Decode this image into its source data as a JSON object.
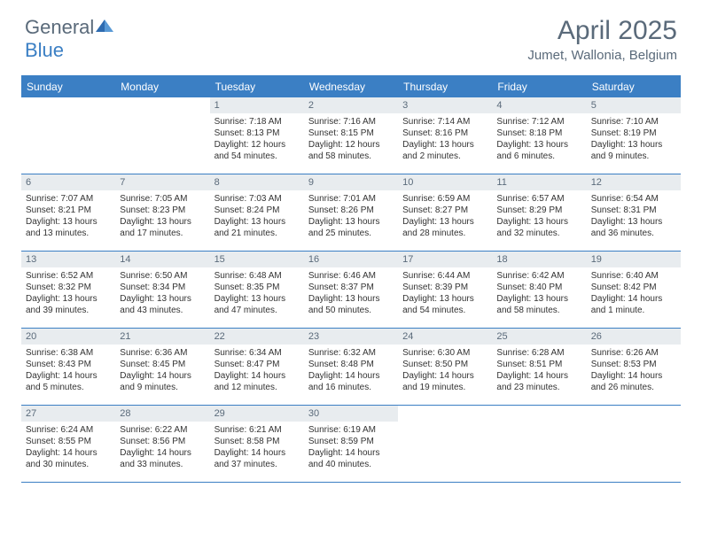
{
  "logo": {
    "text1": "General",
    "text2": "Blue"
  },
  "title": "April 2025",
  "location": "Jumet, Wallonia, Belgium",
  "colors": {
    "header_bg": "#3b7fc4",
    "header_text": "#ffffff",
    "daynum_bg": "#e8ecef",
    "daynum_text": "#5a6a7a",
    "body_text": "#333333",
    "title_text": "#5a6a7a"
  },
  "day_names": [
    "Sunday",
    "Monday",
    "Tuesday",
    "Wednesday",
    "Thursday",
    "Friday",
    "Saturday"
  ],
  "weeks": [
    [
      {
        "empty": true
      },
      {
        "empty": true
      },
      {
        "num": "1",
        "sunrise": "Sunrise: 7:18 AM",
        "sunset": "Sunset: 8:13 PM",
        "daylight": "Daylight: 12 hours and 54 minutes."
      },
      {
        "num": "2",
        "sunrise": "Sunrise: 7:16 AM",
        "sunset": "Sunset: 8:15 PM",
        "daylight": "Daylight: 12 hours and 58 minutes."
      },
      {
        "num": "3",
        "sunrise": "Sunrise: 7:14 AM",
        "sunset": "Sunset: 8:16 PM",
        "daylight": "Daylight: 13 hours and 2 minutes."
      },
      {
        "num": "4",
        "sunrise": "Sunrise: 7:12 AM",
        "sunset": "Sunset: 8:18 PM",
        "daylight": "Daylight: 13 hours and 6 minutes."
      },
      {
        "num": "5",
        "sunrise": "Sunrise: 7:10 AM",
        "sunset": "Sunset: 8:19 PM",
        "daylight": "Daylight: 13 hours and 9 minutes."
      }
    ],
    [
      {
        "num": "6",
        "sunrise": "Sunrise: 7:07 AM",
        "sunset": "Sunset: 8:21 PM",
        "daylight": "Daylight: 13 hours and 13 minutes."
      },
      {
        "num": "7",
        "sunrise": "Sunrise: 7:05 AM",
        "sunset": "Sunset: 8:23 PM",
        "daylight": "Daylight: 13 hours and 17 minutes."
      },
      {
        "num": "8",
        "sunrise": "Sunrise: 7:03 AM",
        "sunset": "Sunset: 8:24 PM",
        "daylight": "Daylight: 13 hours and 21 minutes."
      },
      {
        "num": "9",
        "sunrise": "Sunrise: 7:01 AM",
        "sunset": "Sunset: 8:26 PM",
        "daylight": "Daylight: 13 hours and 25 minutes."
      },
      {
        "num": "10",
        "sunrise": "Sunrise: 6:59 AM",
        "sunset": "Sunset: 8:27 PM",
        "daylight": "Daylight: 13 hours and 28 minutes."
      },
      {
        "num": "11",
        "sunrise": "Sunrise: 6:57 AM",
        "sunset": "Sunset: 8:29 PM",
        "daylight": "Daylight: 13 hours and 32 minutes."
      },
      {
        "num": "12",
        "sunrise": "Sunrise: 6:54 AM",
        "sunset": "Sunset: 8:31 PM",
        "daylight": "Daylight: 13 hours and 36 minutes."
      }
    ],
    [
      {
        "num": "13",
        "sunrise": "Sunrise: 6:52 AM",
        "sunset": "Sunset: 8:32 PM",
        "daylight": "Daylight: 13 hours and 39 minutes."
      },
      {
        "num": "14",
        "sunrise": "Sunrise: 6:50 AM",
        "sunset": "Sunset: 8:34 PM",
        "daylight": "Daylight: 13 hours and 43 minutes."
      },
      {
        "num": "15",
        "sunrise": "Sunrise: 6:48 AM",
        "sunset": "Sunset: 8:35 PM",
        "daylight": "Daylight: 13 hours and 47 minutes."
      },
      {
        "num": "16",
        "sunrise": "Sunrise: 6:46 AM",
        "sunset": "Sunset: 8:37 PM",
        "daylight": "Daylight: 13 hours and 50 minutes."
      },
      {
        "num": "17",
        "sunrise": "Sunrise: 6:44 AM",
        "sunset": "Sunset: 8:39 PM",
        "daylight": "Daylight: 13 hours and 54 minutes."
      },
      {
        "num": "18",
        "sunrise": "Sunrise: 6:42 AM",
        "sunset": "Sunset: 8:40 PM",
        "daylight": "Daylight: 13 hours and 58 minutes."
      },
      {
        "num": "19",
        "sunrise": "Sunrise: 6:40 AM",
        "sunset": "Sunset: 8:42 PM",
        "daylight": "Daylight: 14 hours and 1 minute."
      }
    ],
    [
      {
        "num": "20",
        "sunrise": "Sunrise: 6:38 AM",
        "sunset": "Sunset: 8:43 PM",
        "daylight": "Daylight: 14 hours and 5 minutes."
      },
      {
        "num": "21",
        "sunrise": "Sunrise: 6:36 AM",
        "sunset": "Sunset: 8:45 PM",
        "daylight": "Daylight: 14 hours and 9 minutes."
      },
      {
        "num": "22",
        "sunrise": "Sunrise: 6:34 AM",
        "sunset": "Sunset: 8:47 PM",
        "daylight": "Daylight: 14 hours and 12 minutes."
      },
      {
        "num": "23",
        "sunrise": "Sunrise: 6:32 AM",
        "sunset": "Sunset: 8:48 PM",
        "daylight": "Daylight: 14 hours and 16 minutes."
      },
      {
        "num": "24",
        "sunrise": "Sunrise: 6:30 AM",
        "sunset": "Sunset: 8:50 PM",
        "daylight": "Daylight: 14 hours and 19 minutes."
      },
      {
        "num": "25",
        "sunrise": "Sunrise: 6:28 AM",
        "sunset": "Sunset: 8:51 PM",
        "daylight": "Daylight: 14 hours and 23 minutes."
      },
      {
        "num": "26",
        "sunrise": "Sunrise: 6:26 AM",
        "sunset": "Sunset: 8:53 PM",
        "daylight": "Daylight: 14 hours and 26 minutes."
      }
    ],
    [
      {
        "num": "27",
        "sunrise": "Sunrise: 6:24 AM",
        "sunset": "Sunset: 8:55 PM",
        "daylight": "Daylight: 14 hours and 30 minutes."
      },
      {
        "num": "28",
        "sunrise": "Sunrise: 6:22 AM",
        "sunset": "Sunset: 8:56 PM",
        "daylight": "Daylight: 14 hours and 33 minutes."
      },
      {
        "num": "29",
        "sunrise": "Sunrise: 6:21 AM",
        "sunset": "Sunset: 8:58 PM",
        "daylight": "Daylight: 14 hours and 37 minutes."
      },
      {
        "num": "30",
        "sunrise": "Sunrise: 6:19 AM",
        "sunset": "Sunset: 8:59 PM",
        "daylight": "Daylight: 14 hours and 40 minutes."
      },
      {
        "empty": true
      },
      {
        "empty": true
      },
      {
        "empty": true
      }
    ]
  ]
}
